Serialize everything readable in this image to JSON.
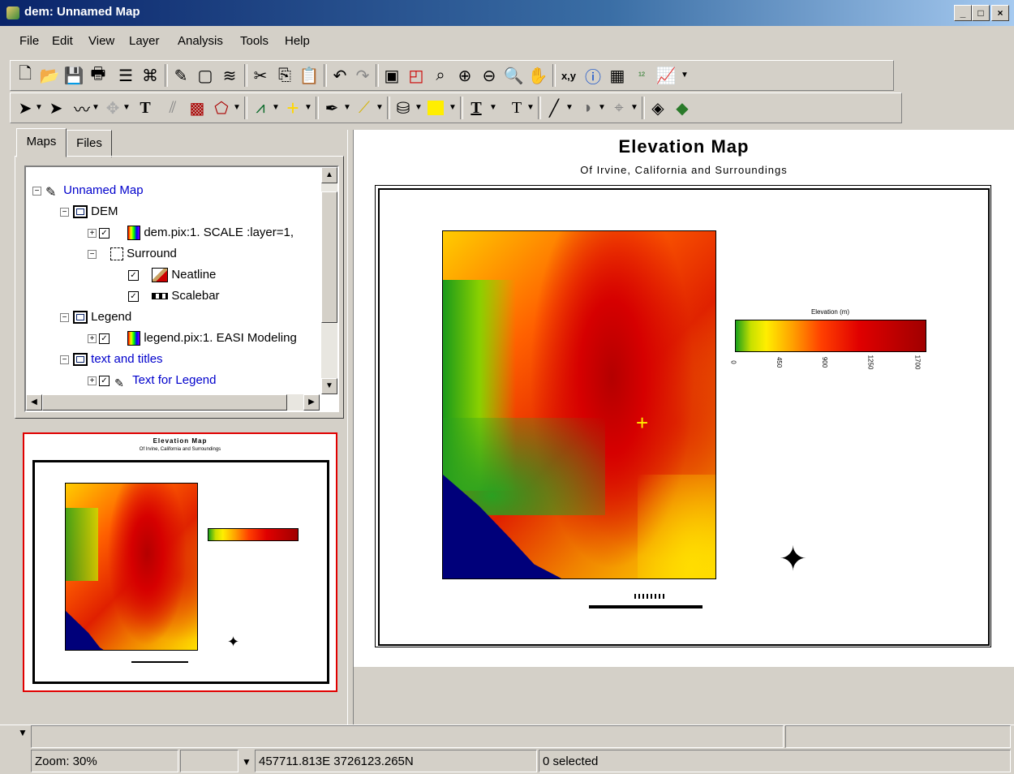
{
  "window": {
    "title": "dem: Unnamed Map"
  },
  "menu": {
    "items": [
      {
        "label": "File"
      },
      {
        "label": "Edit"
      },
      {
        "label": "View"
      },
      {
        "label": "Layer"
      },
      {
        "label": "Analysis"
      },
      {
        "label": "Tools"
      },
      {
        "label": "Help"
      }
    ]
  },
  "tabs": [
    {
      "label": "Maps"
    },
    {
      "label": "Files"
    }
  ],
  "tree": {
    "root": "Unnamed Map",
    "dem": "DEM",
    "dem_layer": "dem.pix:1. SCALE  :layer=1,",
    "surround": "Surround",
    "neatline": "Neatline",
    "scalebar": "Scalebar",
    "legend": "Legend",
    "legend_layer": "legend.pix:1. EASI Modeling",
    "text_titles": "text and titles",
    "text_legend": "Text for Legend"
  },
  "map": {
    "title": "Elevation Map",
    "subtitle": "Of Irvine, California and Surroundings",
    "legend_title": "Elevation (m)",
    "legend_ticks": [
      "0",
      "450",
      "900",
      "1250",
      "1700"
    ]
  },
  "preview": {
    "title": "Elevation Map",
    "subtitle": "Of Irvine, California and Surroundings"
  },
  "statusbar": {
    "zoom": "Zoom: 30%",
    "coords": "457711.813E 3726123.265N",
    "selection": "0 selected"
  },
  "colors": {
    "tree_link": "#0000cc",
    "preview_border": "#e00000",
    "water": "#00007a"
  }
}
